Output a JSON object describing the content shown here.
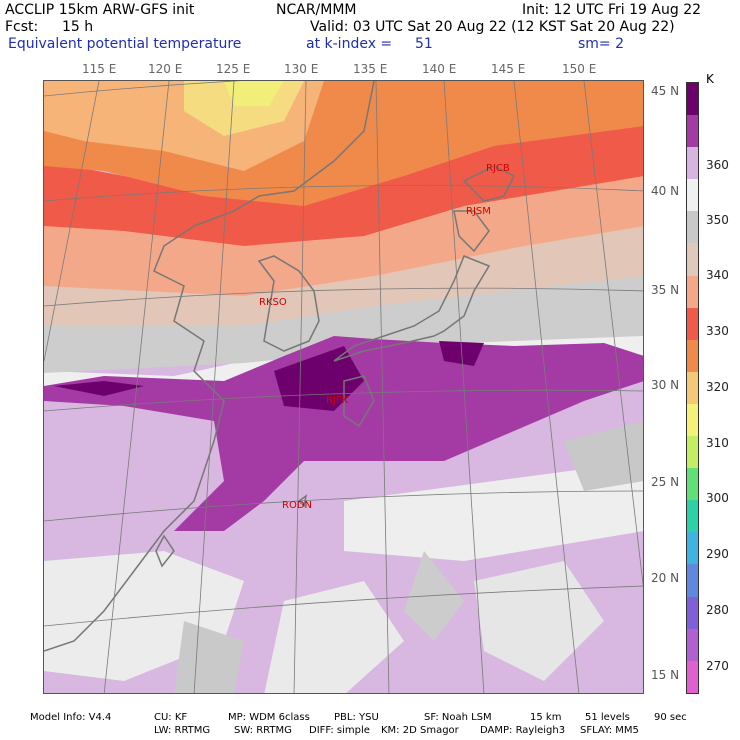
{
  "header": {
    "model": "ACCLIP 15km ARW-GFS init",
    "org": "NCAR/MMM",
    "init": "Init: 12 UTC Fri 19 Aug 22",
    "fcst_label": "Fcst:",
    "fcst_value": "15 h",
    "valid": "Valid: 03 UTC Sat 20 Aug 22 (12 KST Sat 20 Aug 22)",
    "field": "Equivalent potential temperature",
    "level": "at k-index =",
    "level_value": "51",
    "smooth": "sm= 2"
  },
  "map": {
    "longitudes": [
      "115 E",
      "120 E",
      "125 E",
      "130 E",
      "135 E",
      "140 E",
      "145 E",
      "150 E"
    ],
    "latitudes": [
      "45 N",
      "40 N",
      "35 N",
      "30 N",
      "25 N",
      "20 N",
      "15 N"
    ],
    "stations": [
      {
        "id": "RJCB"
      },
      {
        "id": "RJSM"
      },
      {
        "id": "RKSO"
      },
      {
        "id": "RJFK"
      },
      {
        "id": "RODN"
      }
    ]
  },
  "colorbar": {
    "unit": "K",
    "ticks": [
      "360",
      "350",
      "340",
      "330",
      "320",
      "310",
      "300",
      "290",
      "280",
      "270"
    ],
    "colors": [
      "#6e006e",
      "#a43ba4",
      "#d7b5e0",
      "#f0f0f0",
      "#c8c8c8",
      "#e0c8bc",
      "#f4a888",
      "#f05a48",
      "#f08a4a",
      "#f5c878",
      "#f5f07a",
      "#c4ee62",
      "#62e078",
      "#2ed0a8",
      "#40b4e0",
      "#6088e0",
      "#8060d8",
      "#b060d0",
      "#e060d0"
    ]
  },
  "footer": {
    "line1": [
      "Model Info: V4.4",
      "CU: KF",
      "MP: WDM 6class",
      "PBL: YSU",
      "SF: Noah LSM",
      "15 km",
      "51 levels",
      "90 sec"
    ],
    "line2": [
      "LW: RRTMG",
      "SW: RRTMG",
      "DIFF: simple",
      "KM: 2D Smagor",
      "DAMP: Rayleigh3",
      "SFLAY: MM5"
    ]
  }
}
